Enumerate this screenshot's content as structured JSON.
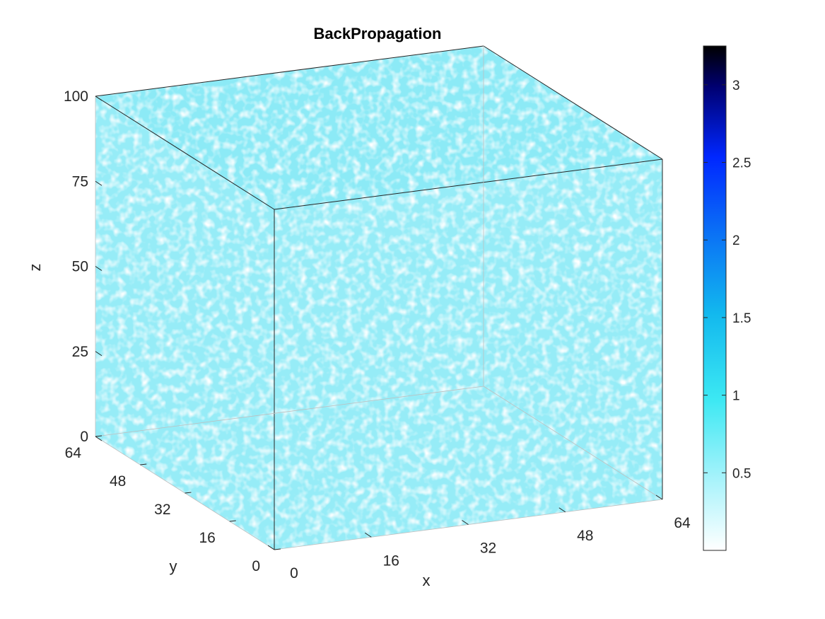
{
  "chart_data": {
    "type": "volume-3d",
    "title": "BackPropagation",
    "xlabel": "x",
    "ylabel": "y",
    "zlabel": "z",
    "xlim": [
      0,
      64
    ],
    "ylim": [
      0,
      64
    ],
    "zlim": [
      0,
      100
    ],
    "x_ticks": [
      "0",
      "16",
      "32",
      "48",
      "64"
    ],
    "y_ticks": [
      "0",
      "16",
      "32",
      "48",
      "64"
    ],
    "z_ticks": [
      "0",
      "25",
      "50",
      "75",
      "100"
    ],
    "box": "on",
    "grid": "off",
    "fill_color": "#3fdcf0",
    "colorbar": {
      "location": "right",
      "range": [
        0,
        3.25
      ],
      "ticks": [
        "0.5",
        "1",
        "1.5",
        "2",
        "2.5",
        "3"
      ],
      "colormap": [
        "#ffffff",
        "#a8f3fb",
        "#3ce8f3",
        "#12b8ee",
        "#0a6cf6",
        "#0027ff",
        "#000070",
        "#000000"
      ]
    }
  }
}
